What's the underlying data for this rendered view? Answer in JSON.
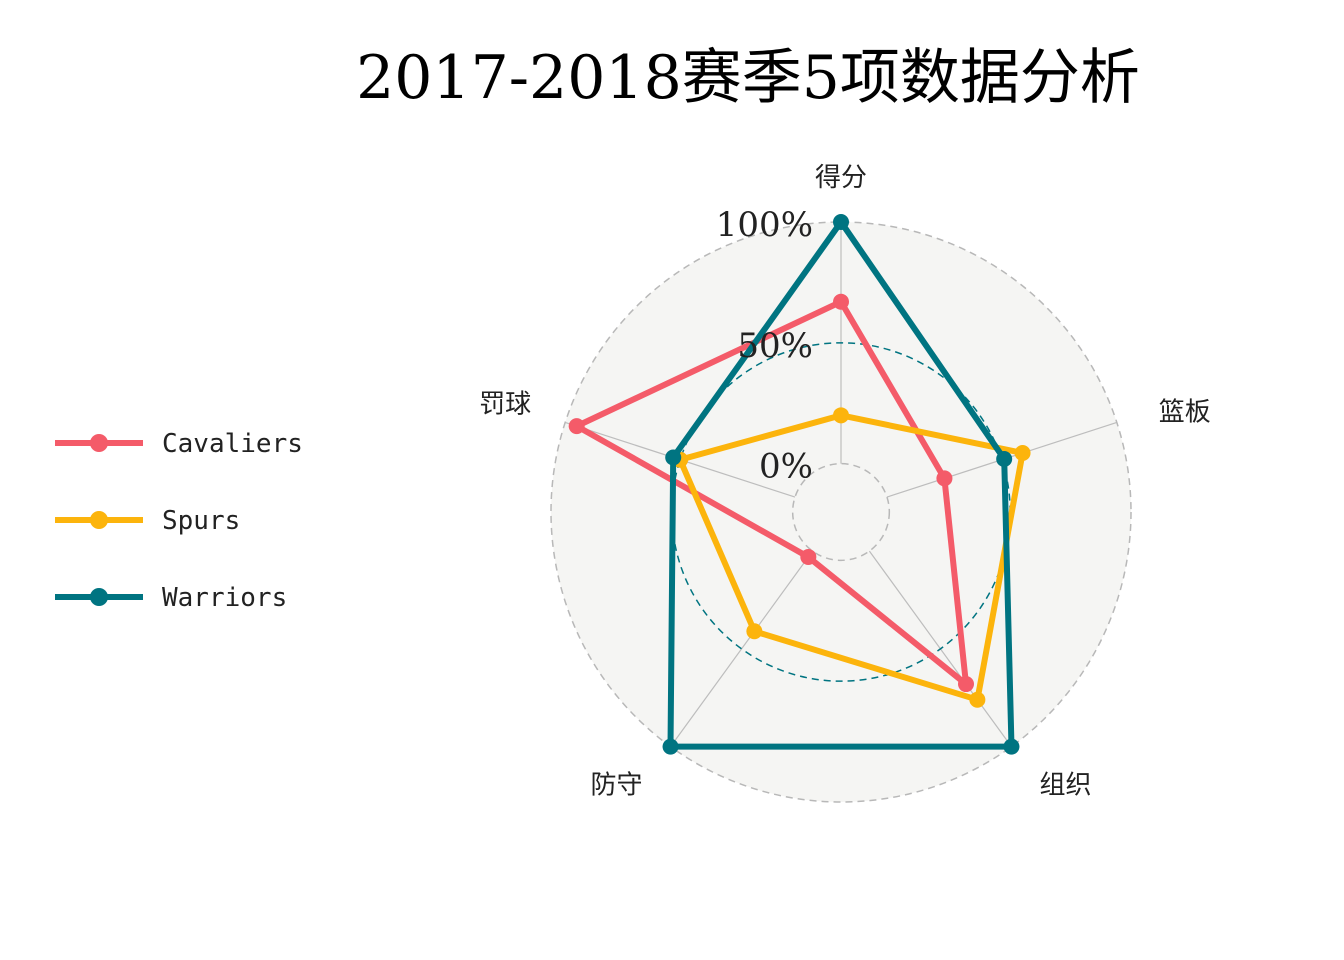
{
  "chart_data": {
    "type": "radar",
    "title": "2017-2018赛季5项数据分析",
    "axes": [
      "得分",
      "篮板",
      "组织",
      "防守",
      "罚球"
    ],
    "grid_ticks": [
      {
        "value": 0,
        "label": "0%"
      },
      {
        "value": 50,
        "label": "50%"
      },
      {
        "value": 100,
        "label": "100%"
      }
    ],
    "ylim": [
      -20,
      100
    ],
    "legend_position": "left",
    "series": [
      {
        "name": "Cavaliers",
        "color": "#F45B69",
        "values": [
          67,
          25,
          68,
          3,
          95
        ]
      },
      {
        "name": "Spurs",
        "color": "#FCB40C",
        "values": [
          20,
          59,
          76,
          41,
          50
        ]
      },
      {
        "name": "Warriors",
        "color": "#007481",
        "values": [
          100,
          51,
          100,
          100,
          53
        ]
      }
    ],
    "colors": {
      "panel_fill": "#F5F5F3",
      "outer_ring": "#B8B8B8",
      "mid_ring": "#007481",
      "inner_ring": "#B8B8B8",
      "spokes": "#BDBDBD"
    }
  }
}
